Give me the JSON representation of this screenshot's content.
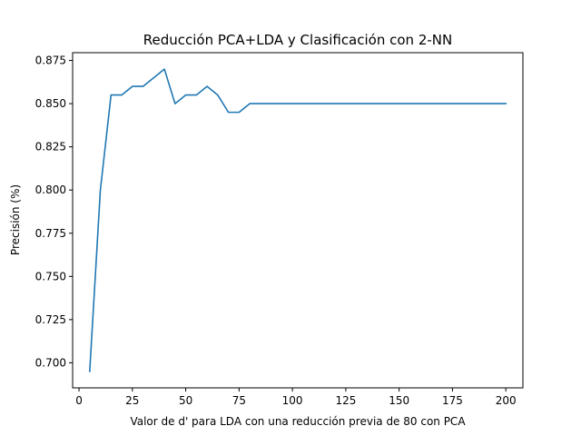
{
  "chart_data": {
    "type": "line",
    "title": "Reducción PCA+LDA y Clasificación con 2-NN",
    "xlabel": "Valor de d' para LDA con una reducción previa de 80 con PCA",
    "ylabel": "Precisión (%)",
    "xlim": [
      -3,
      208
    ],
    "ylim": [
      0.6855,
      0.8795
    ],
    "xticks": [
      0,
      25,
      50,
      75,
      100,
      125,
      150,
      175,
      200
    ],
    "yticks": [
      0.7,
      0.725,
      0.75,
      0.775,
      0.8,
      0.825,
      0.85,
      0.875
    ],
    "ytick_labels": [
      "0.700",
      "0.725",
      "0.750",
      "0.775",
      "0.800",
      "0.825",
      "0.850",
      "0.875"
    ],
    "grid": false,
    "series": [
      {
        "color": "#1f77b4",
        "x": [
          5,
          10,
          15,
          20,
          25,
          30,
          35,
          40,
          45,
          50,
          55,
          60,
          65,
          70,
          75,
          80,
          85,
          90,
          95,
          100,
          105,
          110,
          115,
          120,
          125,
          130,
          135,
          140,
          145,
          150,
          155,
          160,
          165,
          170,
          175,
          180,
          185,
          190,
          195,
          200
        ],
        "y": [
          0.695,
          0.8,
          0.855,
          0.855,
          0.86,
          0.86,
          0.865,
          0.87,
          0.85,
          0.855,
          0.855,
          0.86,
          0.855,
          0.845,
          0.845,
          0.85,
          0.85,
          0.85,
          0.85,
          0.85,
          0.85,
          0.85,
          0.85,
          0.85,
          0.85,
          0.85,
          0.85,
          0.85,
          0.85,
          0.85,
          0.85,
          0.85,
          0.85,
          0.85,
          0.85,
          0.85,
          0.85,
          0.85,
          0.85,
          0.85
        ]
      }
    ]
  }
}
